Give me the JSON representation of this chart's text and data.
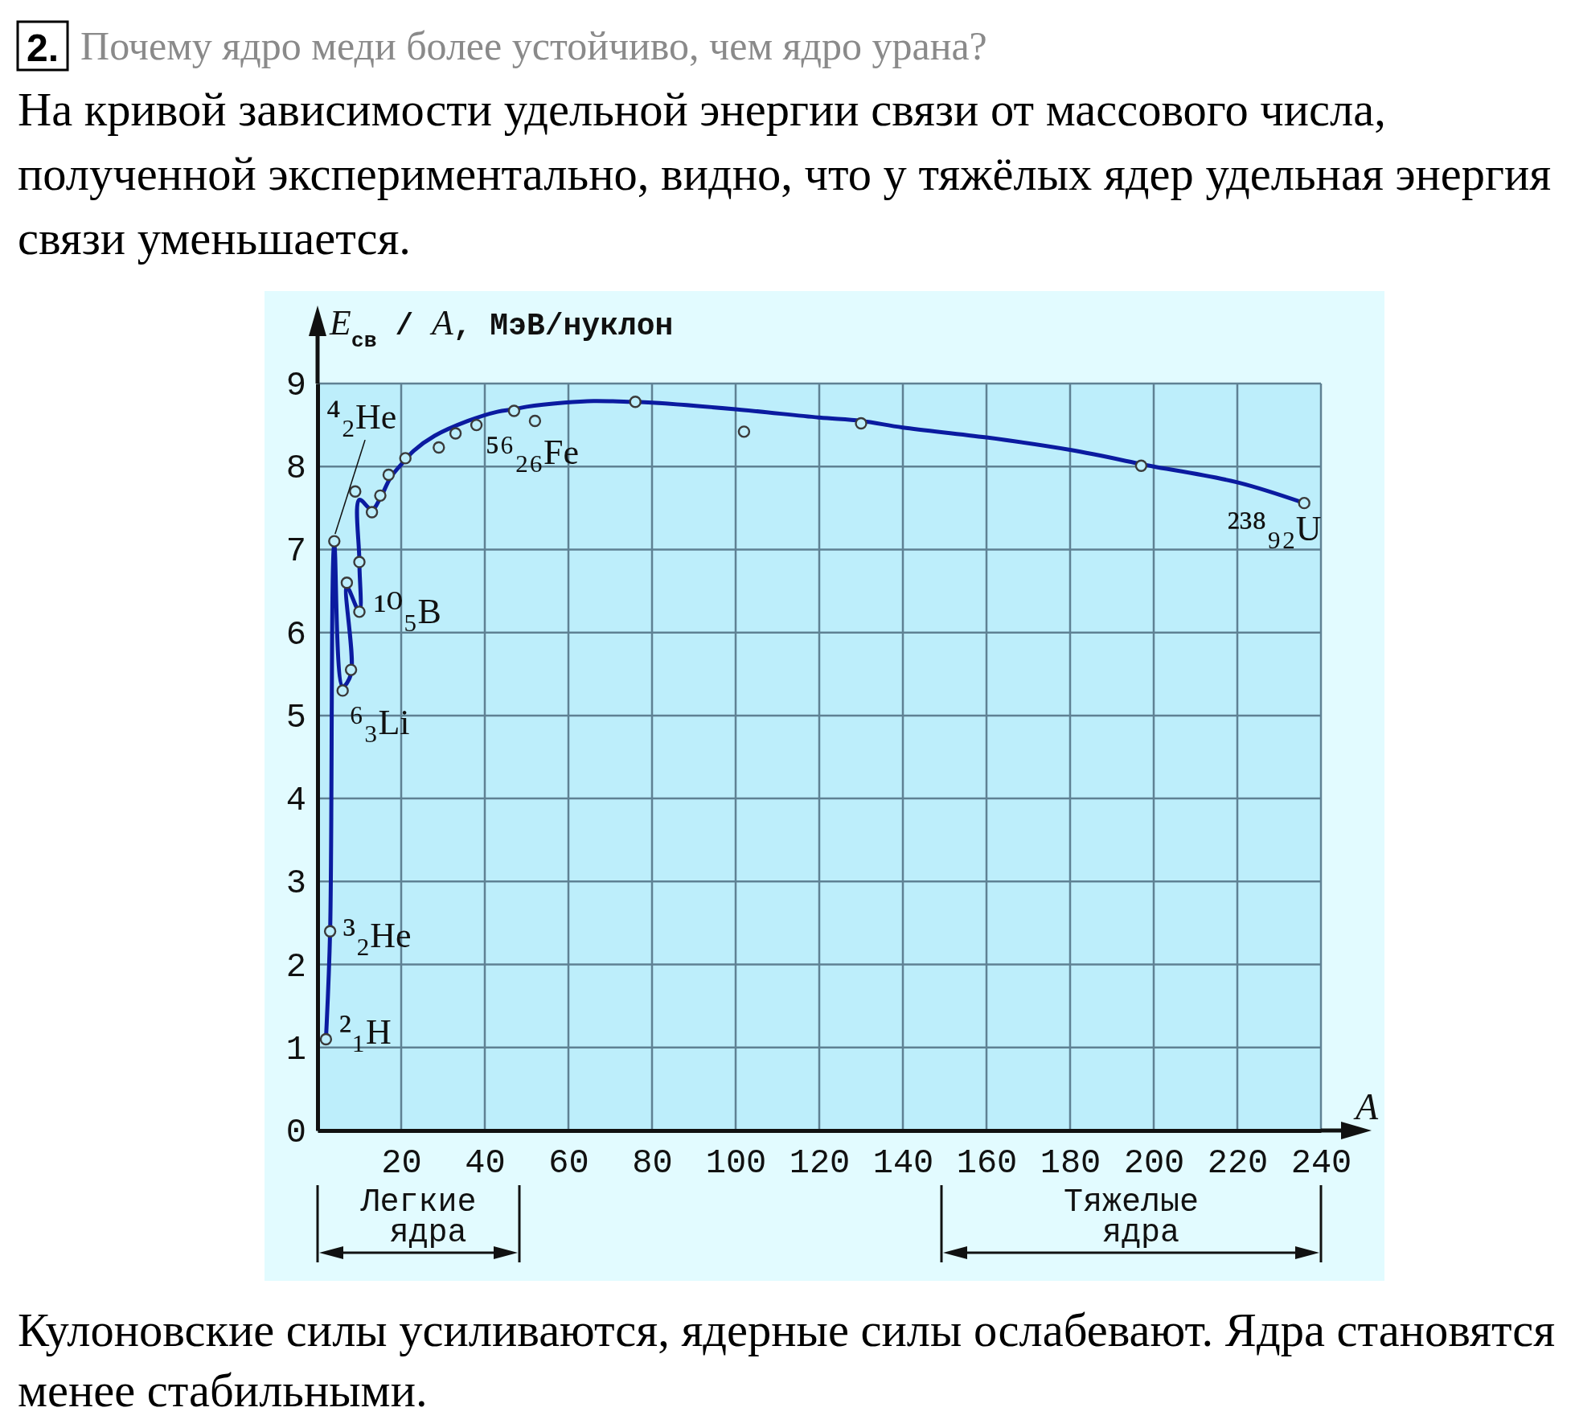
{
  "chart_data": {
    "type": "line",
    "title": "2. Почему ядро меди более устойчиво, чем ядро урана?",
    "subtitle": "На кривой зависимости удельной энергии связи от массового числа, полученной экспериментально, видно, что у тяжёлых ядер удельная энергия связи уменьшается.",
    "xlabel": "A",
    "ylabel": "E$_{св}$ / A, МэВ/нуклон",
    "xlim": [
      0,
      240
    ],
    "xticks": [
      20,
      40,
      60,
      80,
      100,
      120,
      140,
      160,
      180,
      200,
      220,
      240
    ],
    "ylim": [
      0,
      9
    ],
    "yticks": [
      0,
      1,
      2,
      3,
      4,
      5,
      6,
      7,
      8,
      9
    ],
    "grid": true,
    "series": [
      {
        "color": "#0b1ba0",
        "x": [
          2,
          3,
          4,
          6,
          8,
          7,
          10,
          10,
          10,
          13,
          15,
          17.5,
          21,
          23,
          28,
          36,
          43,
          47,
          50,
          59,
          66,
          75,
          80,
          100,
          120,
          130,
          140,
          160,
          180,
          197,
          200,
          220,
          236
        ],
        "values": [
          1.1,
          2.4,
          7.05,
          5.35,
          5.5,
          6.55,
          6.25,
          6.85,
          7.6,
          7.48,
          7.62,
          7.87,
          8.08,
          8.19,
          8.37,
          8.55,
          8.66,
          8.69,
          8.72,
          8.77,
          8.79,
          8.78,
          8.77,
          8.69,
          8.59,
          8.55,
          8.47,
          8.35,
          8.2,
          8.03,
          8.0,
          7.81,
          7.56
        ]
      },
      {
        "type": "scatter",
        "color": "#3a3a3a",
        "marker": "circle",
        "x": [
          2,
          3,
          4,
          6,
          7,
          8,
          9,
          10,
          10,
          13,
          15,
          17,
          21,
          29,
          33,
          38,
          47,
          52,
          76,
          102,
          130,
          197,
          236
        ],
        "values": [
          1.1,
          2.4,
          7.1,
          5.3,
          6.6,
          5.55,
          7.7,
          6.25,
          6.85,
          7.45,
          7.65,
          7.9,
          8.1,
          8.23,
          8.4,
          8.5,
          8.67,
          8.55,
          8.78,
          8.42,
          8.52,
          8.01,
          7.56
        ]
      }
    ],
    "annotations": [
      {
        "text": "⁴₂He",
        "x": 4,
        "y": 7.1
      },
      {
        "text": "³₂He",
        "x": 3,
        "y": 2.4
      },
      {
        "text": "²₁H",
        "x": 2,
        "y": 1.1
      },
      {
        "text": "⁶₃Li",
        "x": 6,
        "y": 5.3
      },
      {
        "text": "¹⁰₅B",
        "x": 10,
        "y": 6.25
      },
      {
        "text": "⁵⁶₂₆Fe",
        "x": 52,
        "y": 8.55
      },
      {
        "text": "²³⁸₉₂U",
        "x": 236,
        "y": 7.56
      },
      "Легкие ядра",
      "Тяжелые ядра",
      "Кулоновские силы усиливаются, ядерные силы ослабевают. Ядра становятся менее стабильными."
    ]
  }
}
